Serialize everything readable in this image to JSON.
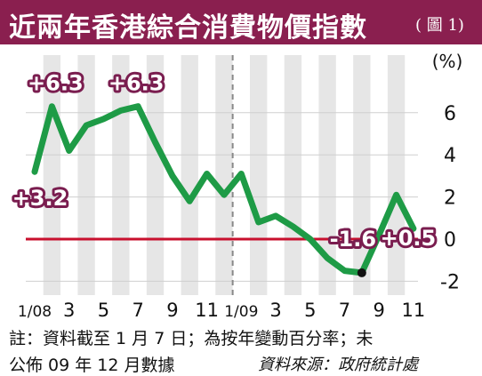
{
  "header": {
    "title": "近兩年香港綜合消費物價指數",
    "figure_ref": "( 圖 1)"
  },
  "chart_data": {
    "type": "line",
    "unit_label": "(%)",
    "x_tick_labels": [
      "1/08",
      "3",
      "5",
      "7",
      "9",
      "11",
      "1/09",
      "3",
      "5",
      "7",
      "9",
      "11"
    ],
    "y_ticks": [
      6,
      4,
      2,
      0,
      -2
    ],
    "ylim": [
      -2.3,
      7.9
    ],
    "series": [
      {
        "values": [
          3.2,
          6.3,
          4.2,
          5.4,
          5.7,
          6.1,
          6.3,
          4.6,
          3.0,
          1.8,
          3.1,
          2.1,
          3.1,
          0.8,
          1.1,
          0.6,
          0.0,
          -0.9,
          -1.5,
          -1.6,
          0.2,
          2.1,
          0.5
        ]
      }
    ],
    "highlight_point_index": 19,
    "zero_line": true,
    "divider_after": "12/08",
    "color_line": "#1e9b46",
    "color_zero": "#c8102e",
    "annotations": [
      {
        "text": "+3.2",
        "point_index": 0
      },
      {
        "text": "+6.3",
        "point_index": 1
      },
      {
        "text": "+6.3",
        "point_index": 6
      },
      {
        "text": "-1.6",
        "point_index": 19
      },
      {
        "text": "+0.5",
        "point_index": 22
      }
    ]
  },
  "footer": {
    "note_line1": "註：資料截至 1 月 7 日；為按年變動百分率；未",
    "note_line2": "公佈 09 年 12 月數據",
    "source": "資料來源：政府統計處"
  }
}
